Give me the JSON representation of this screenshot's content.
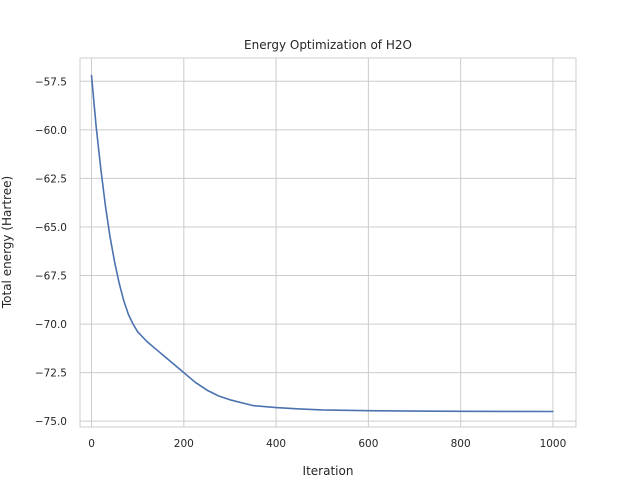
{
  "chart_data": {
    "type": "line",
    "title": "Energy Optimization of H2O",
    "xlabel": "Iteration",
    "ylabel": "Total energy (Hartree)",
    "xlim": [
      -25,
      1050
    ],
    "ylim": [
      -75.3,
      -56.3
    ],
    "xticks": [
      0,
      200,
      400,
      600,
      800,
      1000
    ],
    "yticks": [
      -57.5,
      -60.0,
      -62.5,
      -65.0,
      -67.5,
      -70.0,
      -72.5,
      -75.0
    ],
    "xtick_labels": [
      "0",
      "200",
      "400",
      "600",
      "800",
      "1000"
    ],
    "ytick_labels": [
      "−57.5",
      "−60.0",
      "−62.5",
      "−65.0",
      "−67.5",
      "−70.0",
      "−72.5",
      "−75.0"
    ],
    "grid": true,
    "series": [
      {
        "color": "#4c72b0",
        "x": [
          0,
          10,
          20,
          30,
          40,
          50,
          60,
          70,
          80,
          90,
          100,
          120,
          140,
          160,
          180,
          200,
          225,
          250,
          275,
          300,
          350,
          400,
          450,
          500,
          600,
          700,
          800,
          900,
          1000
        ],
        "y": [
          -57.2,
          -59.8,
          -62.0,
          -63.9,
          -65.5,
          -66.8,
          -67.9,
          -68.8,
          -69.5,
          -70.0,
          -70.4,
          -70.9,
          -71.3,
          -71.7,
          -72.1,
          -72.5,
          -73.0,
          -73.4,
          -73.7,
          -73.9,
          -74.2,
          -74.3,
          -74.37,
          -74.42,
          -74.46,
          -74.48,
          -74.49,
          -74.495,
          -74.5
        ]
      }
    ]
  }
}
